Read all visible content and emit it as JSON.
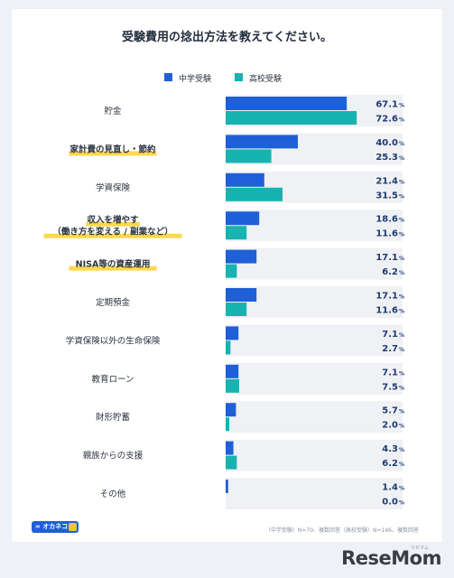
{
  "title": "受験費用の捻出方法を教えてください。",
  "legend": [
    {
      "label": "中学受験",
      "color": "#1f5fd8"
    },
    {
      "label": "高校受験",
      "color": "#17b3b0"
    }
  ],
  "chart_data": {
    "type": "bar",
    "orientation": "horizontal",
    "categories": [
      [
        "貯金"
      ],
      [
        "家計費の見直し・節約"
      ],
      [
        "学資保険"
      ],
      [
        "収入を増やす",
        "（働き方を変える / 副業など）"
      ],
      [
        "NISA等の資産運用"
      ],
      [
        "定期預金"
      ],
      [
        "学資保険以外の生命保険"
      ],
      [
        "教育ローン"
      ],
      [
        "財形貯蓄"
      ],
      [
        "親族からの支援"
      ],
      [
        "その他"
      ]
    ],
    "highlighted": [
      false,
      true,
      false,
      true,
      true,
      false,
      false,
      false,
      false,
      false,
      false
    ],
    "series": [
      {
        "name": "中学受験",
        "values": [
          67.1,
          40.0,
          21.4,
          18.6,
          17.1,
          17.1,
          7.1,
          7.1,
          5.7,
          4.3,
          1.4
        ]
      },
      {
        "name": "高校受験",
        "values": [
          72.6,
          25.3,
          31.5,
          11.6,
          6.2,
          11.6,
          2.7,
          7.5,
          2.0,
          6.2,
          0.0
        ]
      }
    ],
    "value_labels": [
      [
        "67.1",
        "40.0",
        "21.4",
        "18.6",
        "17.1",
        "17.1",
        "7.1",
        "7.1",
        "5.7",
        "4.3",
        "1.4"
      ],
      [
        "72.6",
        "25.3",
        "31.5",
        "11.6",
        "6.2",
        "11.6",
        "2.7",
        "7.5",
        "2.0",
        "6.2",
        "0.0"
      ]
    ],
    "unit": "%",
    "xlim": [
      0,
      100
    ],
    "grid": false,
    "legend_position": "top"
  },
  "footer": {
    "logo": "∞ オカネコ",
    "note": "（中学受験）N=70、複数回答（高校受験）N=146、複数回答"
  },
  "brand": {
    "name": "ReseMom",
    "sub": "リセマム"
  },
  "colors": {
    "highlight": "#ffd84d",
    "track": "#eff1f5",
    "text": "#2a3340",
    "value_text": "#1f3a6e"
  }
}
